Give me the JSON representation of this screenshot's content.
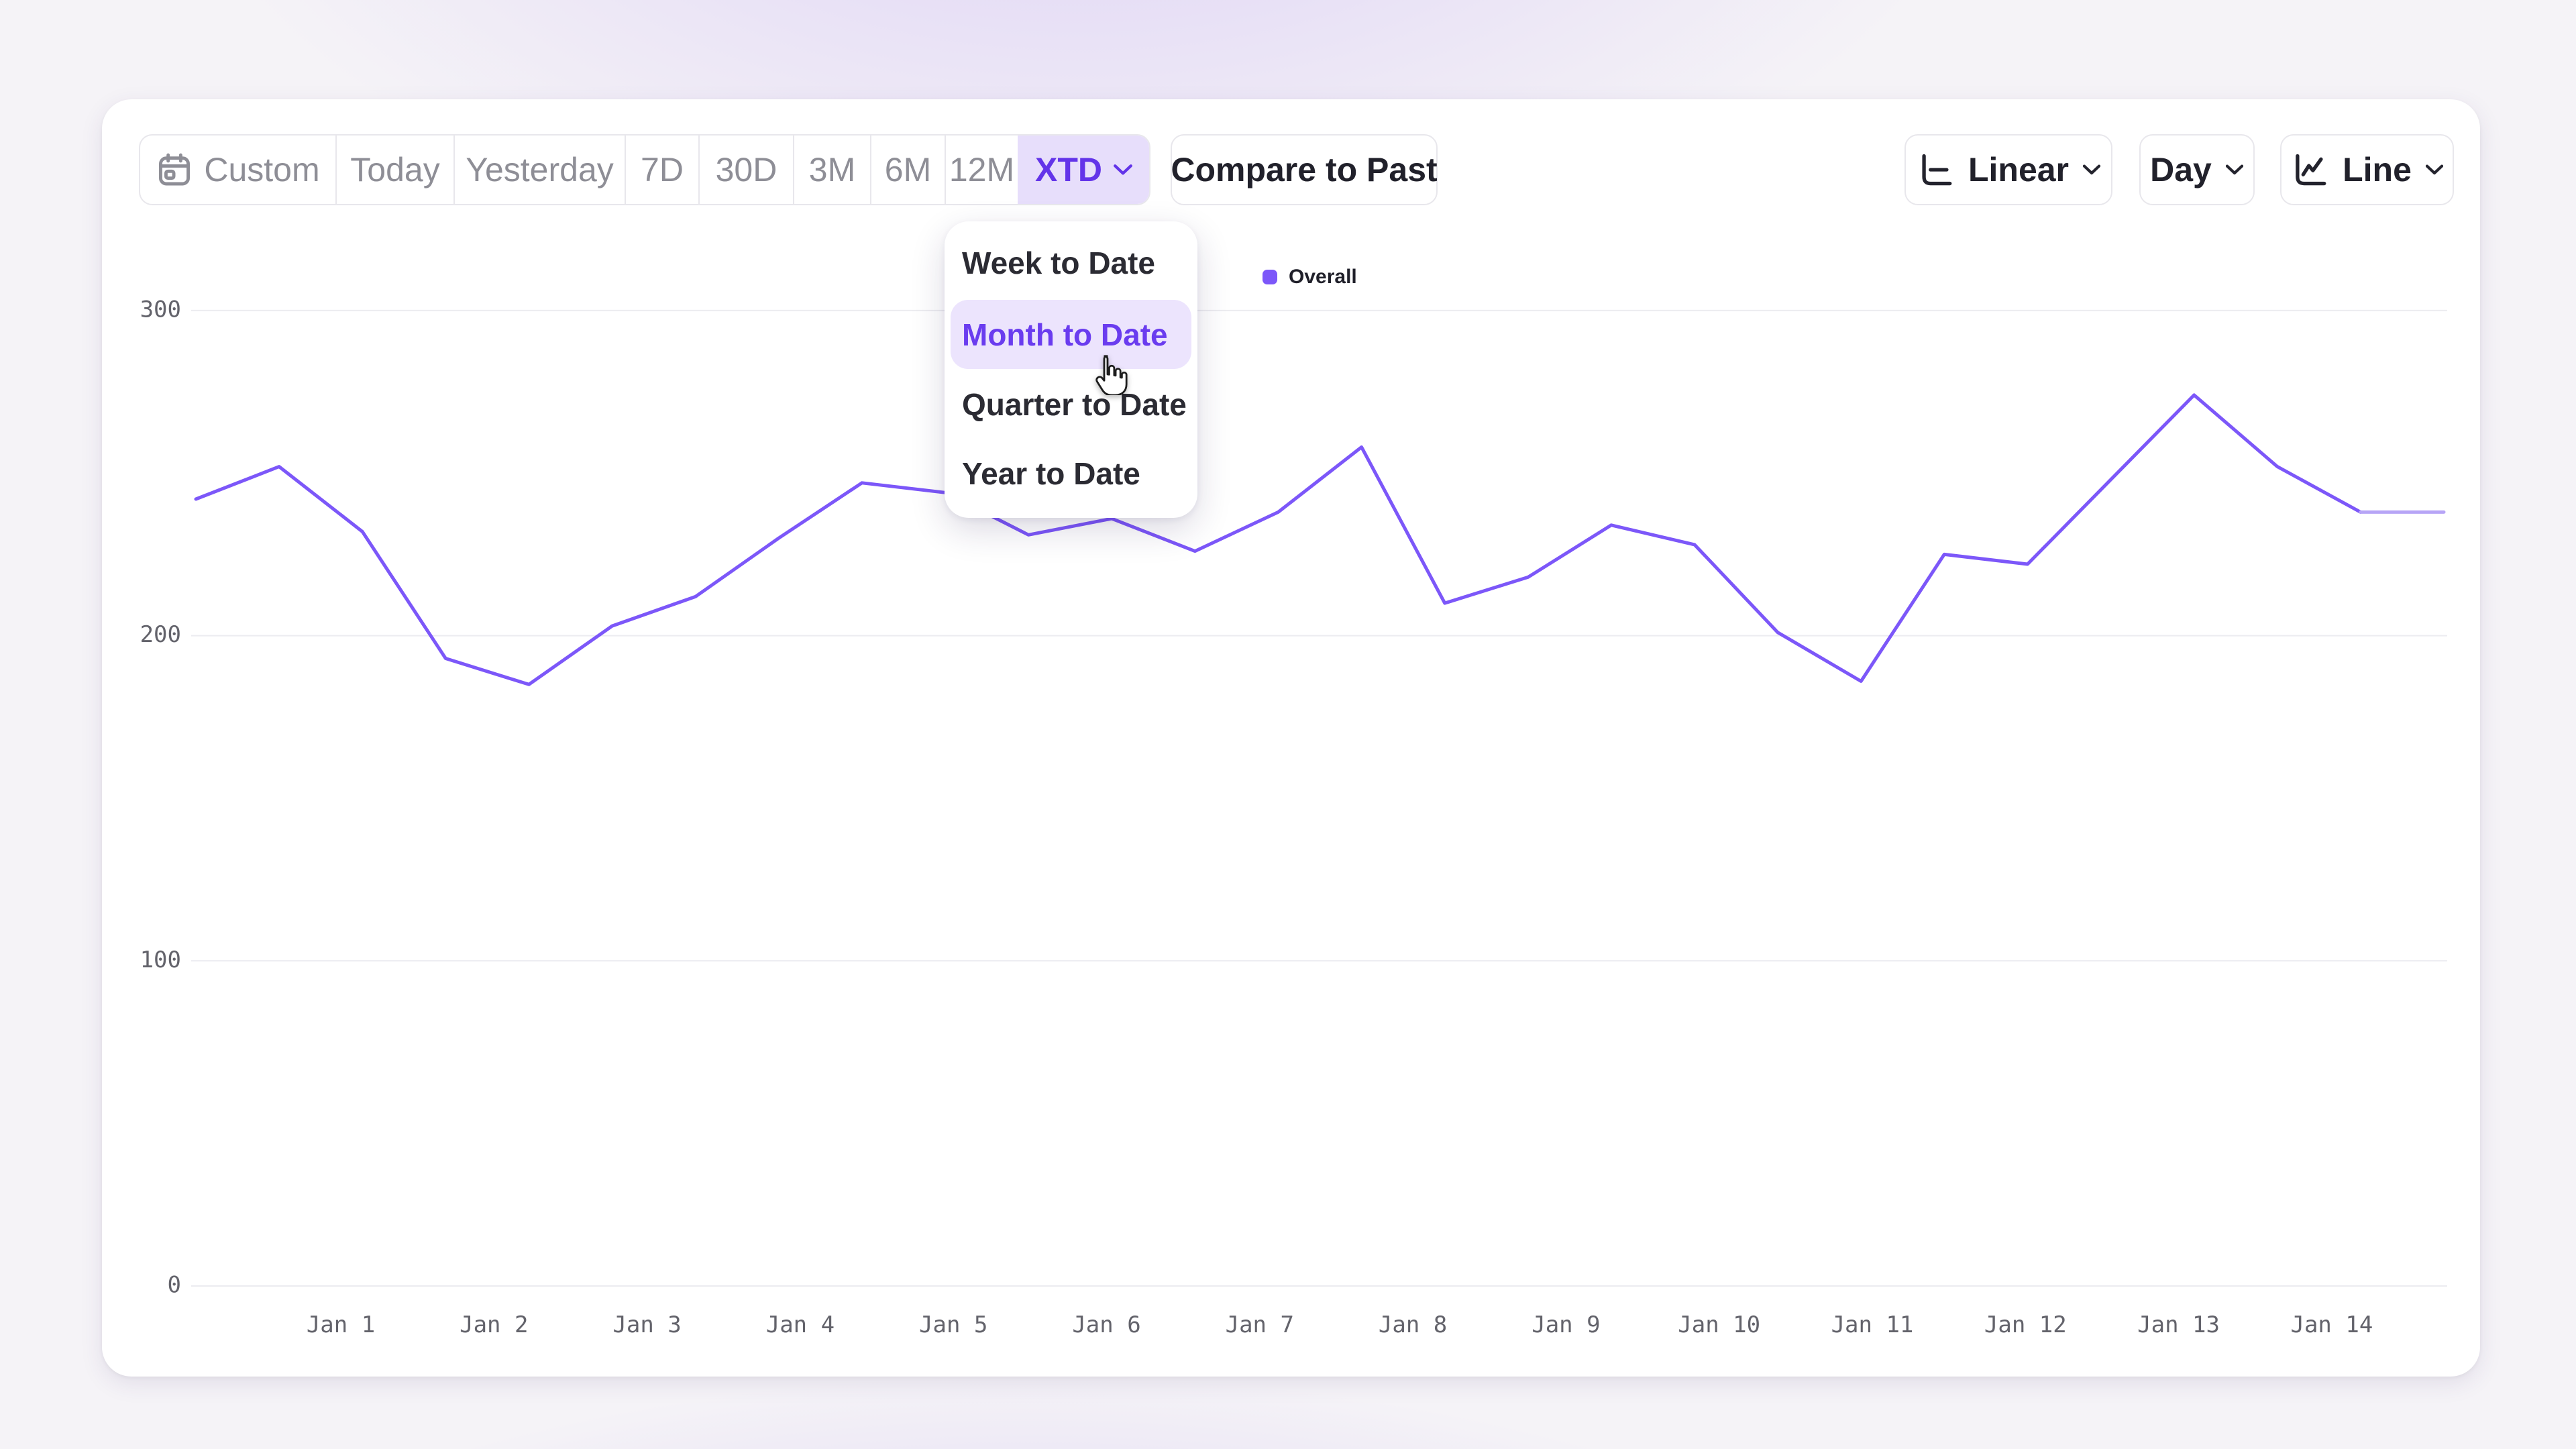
{
  "toolbar": {
    "presets": [
      {
        "label": "Custom",
        "icon": "calendar-icon",
        "selected": false
      },
      {
        "label": "Today",
        "selected": false
      },
      {
        "label": "Yesterday",
        "selected": false
      },
      {
        "label": "7D",
        "selected": false
      },
      {
        "label": "30D",
        "selected": false
      },
      {
        "label": "3M",
        "selected": false
      },
      {
        "label": "6M",
        "selected": false
      },
      {
        "label": "12M",
        "selected": false
      },
      {
        "label": "XTD",
        "selected": true,
        "icon": "chevron-down-icon"
      }
    ],
    "compare_button": "Compare to Past",
    "scale_button": {
      "label": "Linear",
      "icon": "linear-scale-icon"
    },
    "granularity_button": {
      "label": "Day"
    },
    "chart_type_button": {
      "label": "Line",
      "icon": "line-chart-icon"
    }
  },
  "xtd_dropdown": {
    "items": [
      {
        "label": "Week to Date",
        "selected": false
      },
      {
        "label": "Month to Date",
        "selected": true,
        "hovered": true
      },
      {
        "label": "Quarter to Date",
        "selected": false
      },
      {
        "label": "Year to Date",
        "selected": false
      }
    ]
  },
  "legend": {
    "label": "Overall",
    "color": "#7c57f9"
  },
  "colors": {
    "accent": "#6334e9",
    "accent_bg": "#e7defb",
    "series_line": "#7c57f9",
    "series_line_partial": "#b7a5f6",
    "grid": "#ececf0",
    "axis_text": "#63636b",
    "button_text": "#21212b",
    "muted_text": "#8e8e96"
  },
  "chart_data": {
    "type": "line",
    "title": "",
    "xlabel": "",
    "ylabel": "",
    "x_tick_labels": [
      "Jan 1",
      "Jan 2",
      "Jan 3",
      "Jan 4",
      "Jan 5",
      "Jan 6",
      "Jan 7",
      "Jan 8",
      "Jan 9",
      "Jan 10",
      "Jan 11",
      "Jan 12",
      "Jan 13",
      "Jan 14"
    ],
    "y_ticks": [
      0,
      100,
      200,
      300
    ],
    "ylim": [
      0,
      365
    ],
    "grid": "horizontal",
    "legend_position": "top-center",
    "points_per_day": 2,
    "series": [
      {
        "name": "Overall",
        "color": "#7c57f9",
        "values": [
          242,
          252,
          232,
          193,
          185,
          203,
          212,
          230,
          247,
          244,
          231,
          236,
          226,
          238,
          258,
          210,
          218,
          234,
          228,
          201,
          186,
          225,
          222,
          248,
          274,
          252,
          238,
          238
        ],
        "partial_tail_points": 1
      }
    ]
  }
}
